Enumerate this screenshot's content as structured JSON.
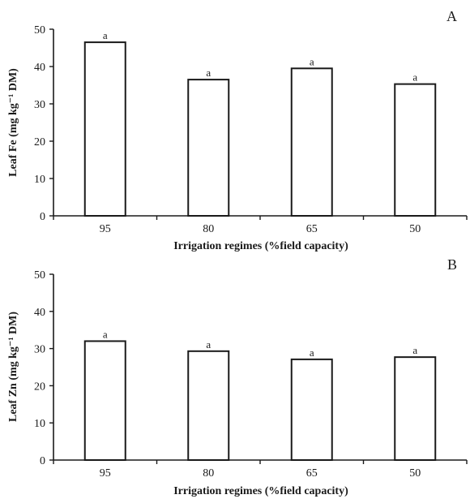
{
  "chart_data": [
    {
      "type": "bar",
      "panel_label": "A",
      "categories": [
        "95",
        "80",
        "65",
        "50"
      ],
      "values": [
        46.5,
        36.5,
        39.5,
        35.3
      ],
      "bar_labels": [
        "a",
        "a",
        "a",
        "a"
      ],
      "xlabel": "Irrigation regimes (%field capacity)",
      "ylabel": "Leaf Fe (mg kg⁻¹ DM)",
      "ylim": [
        0,
        50
      ],
      "yticks": [
        0,
        10,
        20,
        30,
        40,
        50
      ],
      "grid": false,
      "legend": "none"
    },
    {
      "type": "bar",
      "panel_label": "B",
      "categories": [
        "95",
        "80",
        "65",
        "50"
      ],
      "values": [
        32.0,
        29.3,
        27.1,
        27.7
      ],
      "bar_labels": [
        "a",
        "a",
        "a",
        "a"
      ],
      "xlabel": "Irrigation regimes (%field capacity)",
      "ylabel": "Leaf Zn (mg kg⁻¹ DM)",
      "ylim": [
        0,
        50
      ],
      "yticks": [
        0,
        10,
        20,
        30,
        40,
        50
      ],
      "grid": false,
      "legend": "none"
    }
  ]
}
